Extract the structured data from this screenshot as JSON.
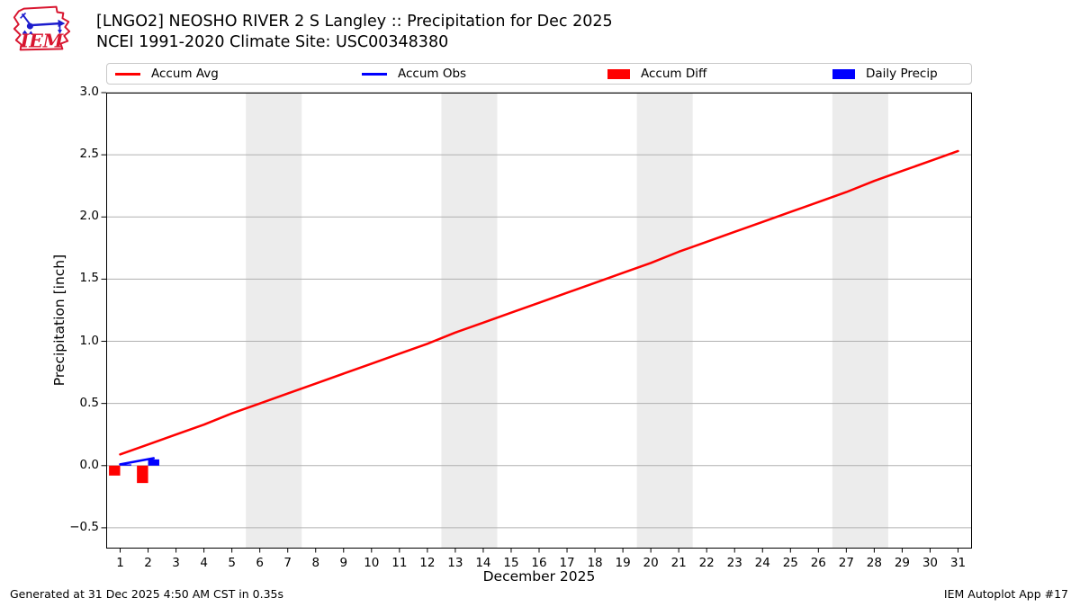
{
  "header": {
    "title_line1": "[LNGO2] NEOSHO RIVER 2 S Langley :: Precipitation for Dec 2025",
    "title_line2": "NCEI 1991-2020 Climate Site: USC00348380"
  },
  "logo": {
    "label": "IEM"
  },
  "legend": {
    "items": [
      {
        "label": "Accum Avg",
        "marker": "line",
        "color": "#ff0000"
      },
      {
        "label": "Accum Obs",
        "marker": "line",
        "color": "#0000ff"
      },
      {
        "label": "Accum Diff",
        "marker": "rect",
        "color": "#ff0000"
      },
      {
        "label": "Daily Precip",
        "marker": "rect",
        "color": "#0000ff"
      }
    ]
  },
  "chart_data": {
    "type": "line+bar",
    "title": "[LNGO2] NEOSHO RIVER 2 S Langley :: Precipitation for Dec 2025",
    "subtitle": "NCEI 1991-2020 Climate Site: USC00348380",
    "xlabel": "December 2025",
    "ylabel": "Precipitation [inch]",
    "xlim": [
      0.5,
      31.5
    ],
    "ylim": [
      -0.667,
      3.0
    ],
    "xticks": [
      1,
      2,
      3,
      4,
      5,
      6,
      7,
      8,
      9,
      10,
      11,
      12,
      13,
      14,
      15,
      16,
      17,
      18,
      19,
      20,
      21,
      22,
      23,
      24,
      25,
      26,
      27,
      28,
      29,
      30,
      31
    ],
    "yticks": [
      3.0,
      2.5,
      2.0,
      1.5,
      1.0,
      0.5,
      0.0,
      -0.5
    ],
    "ytick_labels": [
      "3.0",
      "2.5",
      "2.0",
      "1.5",
      "1.0",
      "0.5",
      "0.0",
      "−0.5"
    ],
    "grid": "horizontal",
    "grid_color": "#b0b0b0",
    "weekend_band_color": "#ececec",
    "weekend_bands": [
      [
        5.5,
        7.5
      ],
      [
        12.5,
        14.5
      ],
      [
        19.5,
        21.5
      ],
      [
        26.5,
        28.5
      ]
    ],
    "bar_width_days": 0.4,
    "legend_position": "top",
    "series": [
      {
        "name": "Accum Avg",
        "type": "line",
        "color": "#ff0000",
        "x": [
          1,
          2,
          3,
          4,
          5,
          6,
          7,
          8,
          9,
          10,
          11,
          12,
          13,
          14,
          15,
          16,
          17,
          18,
          19,
          20,
          21,
          22,
          23,
          24,
          25,
          26,
          27,
          28,
          29,
          30,
          31
        ],
        "values": [
          0.09,
          0.17,
          0.25,
          0.33,
          0.42,
          0.5,
          0.58,
          0.66,
          0.74,
          0.82,
          0.9,
          0.98,
          1.07,
          1.15,
          1.23,
          1.31,
          1.39,
          1.47,
          1.55,
          1.63,
          1.72,
          1.8,
          1.88,
          1.96,
          2.04,
          2.12,
          2.2,
          2.29,
          2.37,
          2.45,
          2.53
        ]
      },
      {
        "name": "Accum Obs",
        "type": "line",
        "color": "#0000ff",
        "x": [
          1,
          2.2
        ],
        "values": [
          0.01,
          0.06
        ]
      },
      {
        "name": "Accum Diff",
        "type": "bar",
        "align": "left",
        "color": "#ff0000",
        "x": [
          1,
          2
        ],
        "values": [
          -0.08,
          -0.14
        ]
      },
      {
        "name": "Daily Precip",
        "type": "bar",
        "align": "right",
        "color": "#0000ff",
        "x": [
          1,
          2
        ],
        "values": [
          0.01,
          0.05
        ]
      }
    ]
  },
  "footer": {
    "left": "Generated at 31 Dec 2025 4:50 AM CST in 0.35s",
    "right": "IEM Autoplot App #17"
  }
}
